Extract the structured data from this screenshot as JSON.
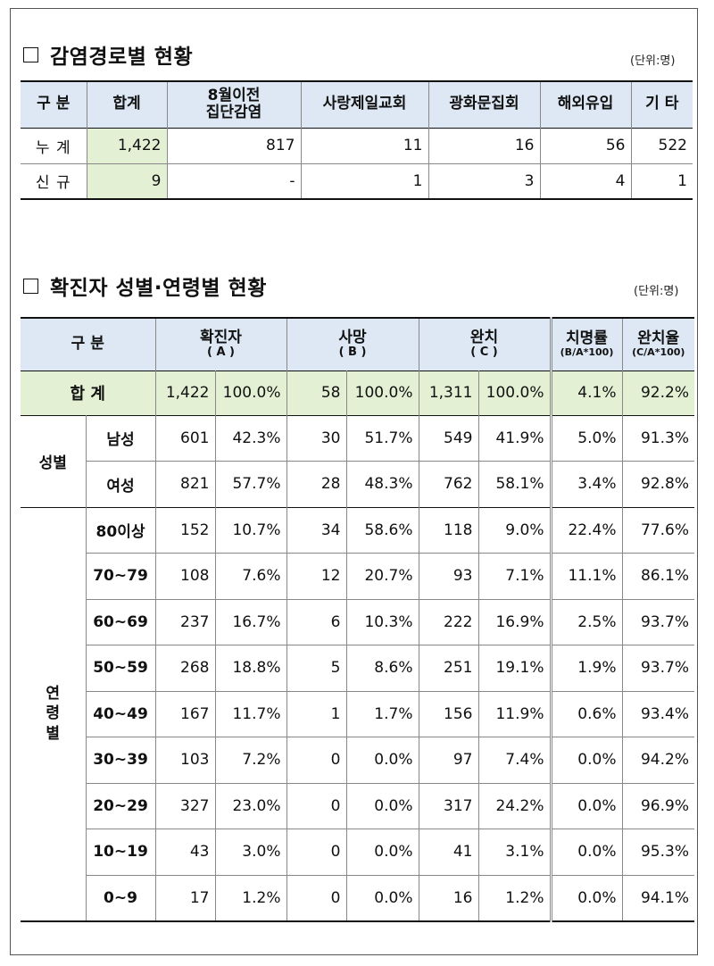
{
  "section1": {
    "title": "감염경로별 현황",
    "unit": "(단위:명)",
    "headers": [
      "구 분",
      "합계",
      "8월이전",
      "집단감염",
      "사랑제일교회",
      "광화문집회",
      "해외유입",
      "기 타"
    ],
    "rows": [
      {
        "label": "누 계",
        "values": [
          "1,422",
          "817",
          "11",
          "16",
          "56",
          "522"
        ]
      },
      {
        "label": "신 규",
        "values": [
          "9",
          "-",
          "1",
          "3",
          "4",
          "1"
        ]
      }
    ]
  },
  "section2": {
    "title": "확진자 성별·연령별 현황",
    "unit": "(단위:명)",
    "headers": {
      "gubun": "구 분",
      "confirmed": "확진자",
      "confirmed_sub": "( A )",
      "deaths": "사망",
      "deaths_sub": "( B )",
      "recovered": "완치",
      "recovered_sub": "( C )",
      "fatality": "치명률",
      "fatality_sub": "(B/A*100)",
      "recovery": "완치율",
      "recovery_sub": "(C/A*100)"
    },
    "total": {
      "label": "합 계",
      "values": [
        "1,422",
        "100.0%",
        "58",
        "100.0%",
        "1,311",
        "100.0%",
        "4.1%",
        "92.2%"
      ]
    },
    "sex_group": "성별",
    "age_group": [
      "연",
      "령",
      "별"
    ],
    "rows": [
      {
        "label": "남성",
        "values": [
          "601",
          "42.3%",
          "30",
          "51.7%",
          "549",
          "41.9%",
          "5.0%",
          "91.3%"
        ]
      },
      {
        "label": "여성",
        "values": [
          "821",
          "57.7%",
          "28",
          "48.3%",
          "762",
          "58.1%",
          "3.4%",
          "92.8%"
        ]
      },
      {
        "label": "80이상",
        "values": [
          "152",
          "10.7%",
          "34",
          "58.6%",
          "118",
          "9.0%",
          "22.4%",
          "77.6%"
        ]
      },
      {
        "label": "70~79",
        "values": [
          "108",
          "7.6%",
          "12",
          "20.7%",
          "93",
          "7.1%",
          "11.1%",
          "86.1%"
        ]
      },
      {
        "label": "60~69",
        "values": [
          "237",
          "16.7%",
          "6",
          "10.3%",
          "222",
          "16.9%",
          "2.5%",
          "93.7%"
        ]
      },
      {
        "label": "50~59",
        "values": [
          "268",
          "18.8%",
          "5",
          "8.6%",
          "251",
          "19.1%",
          "1.9%",
          "93.7%"
        ]
      },
      {
        "label": "40~49",
        "values": [
          "167",
          "11.7%",
          "1",
          "1.7%",
          "156",
          "11.9%",
          "0.6%",
          "93.4%"
        ]
      },
      {
        "label": "30~39",
        "values": [
          "103",
          "7.2%",
          "0",
          "0.0%",
          "97",
          "7.4%",
          "0.0%",
          "94.2%"
        ]
      },
      {
        "label": "20~29",
        "values": [
          "327",
          "23.0%",
          "0",
          "0.0%",
          "317",
          "24.2%",
          "0.0%",
          "96.9%"
        ]
      },
      {
        "label": "10~19",
        "values": [
          "43",
          "3.0%",
          "0",
          "0.0%",
          "41",
          "3.1%",
          "0.0%",
          "95.3%"
        ]
      },
      {
        "label": "0~9",
        "values": [
          "17",
          "1.2%",
          "0",
          "0.0%",
          "16",
          "1.2%",
          "0.0%",
          "94.1%"
        ]
      }
    ]
  }
}
